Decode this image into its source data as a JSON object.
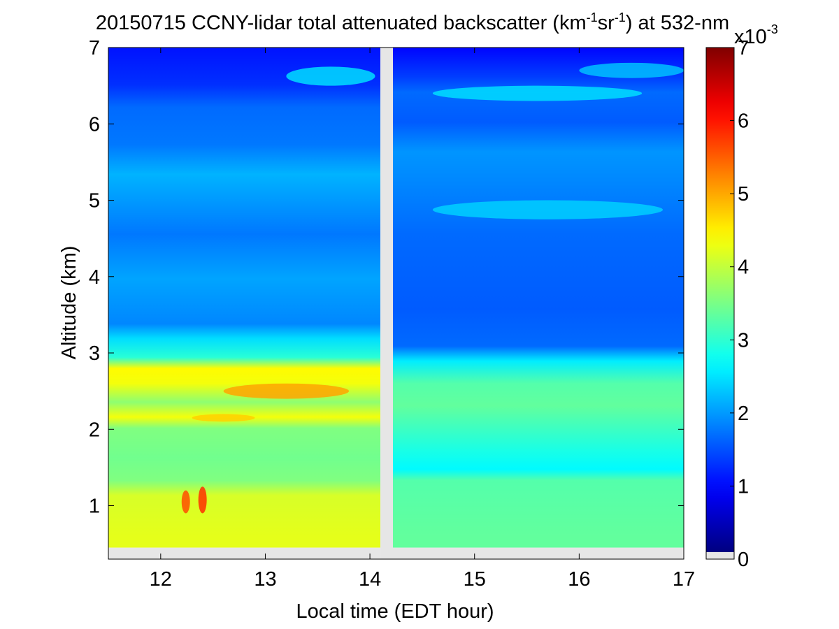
{
  "chart_data": {
    "type": "heatmap",
    "title_parts": {
      "prefix": "20150715 CCNY-lidar total attenuated backscatter (km",
      "exp1": "-1",
      "middle": "sr",
      "exp2": "-1",
      "suffix": ") at 532-nm"
    },
    "xlabel": "Local time (EDT hour)",
    "ylabel": "Altitude (km)",
    "xlim": [
      11.5,
      17.0
    ],
    "ylim": [
      0.3,
      7.0
    ],
    "xticks": [
      12,
      13,
      14,
      15,
      16,
      17
    ],
    "yticks": [
      1,
      2,
      3,
      4,
      5,
      6,
      7
    ],
    "data_gap": {
      "x_start": 14.1,
      "x_end": 14.22
    },
    "colorbar": {
      "range": [
        0,
        7
      ],
      "ticks": [
        0,
        1,
        2,
        3,
        4,
        5,
        6,
        7
      ],
      "exponent_base": "x10",
      "exponent": "-3",
      "colormap": "jet",
      "nodata_color": "#e6e6e6"
    },
    "before_gap": {
      "x_range": [
        11.5,
        14.1
      ],
      "profile": [
        {
          "altitude": 0.45,
          "value": 4.2
        },
        {
          "altitude": 1.0,
          "value": 4.1
        },
        {
          "altitude": 1.2,
          "value": 3.5
        },
        {
          "altitude": 1.5,
          "value": 3.4
        },
        {
          "altitude": 1.9,
          "value": 3.5
        },
        {
          "altitude": 2.05,
          "value": 4.3
        },
        {
          "altitude": 2.25,
          "value": 3.6
        },
        {
          "altitude": 2.5,
          "value": 4.3
        },
        {
          "altitude": 2.7,
          "value": 4.4
        },
        {
          "altitude": 2.85,
          "value": 2.9
        },
        {
          "altitude": 3.1,
          "value": 2.4
        },
        {
          "altitude": 3.3,
          "value": 1.8
        },
        {
          "altitude": 3.9,
          "value": 2.0
        },
        {
          "altitude": 4.5,
          "value": 1.7
        },
        {
          "altitude": 5.3,
          "value": 2.1
        },
        {
          "altitude": 5.7,
          "value": 1.7
        },
        {
          "altitude": 6.2,
          "value": 1.6
        },
        {
          "altitude": 6.5,
          "value": 1.2
        },
        {
          "altitude": 7.0,
          "value": 1.0
        }
      ]
    },
    "after_gap": {
      "x_range": [
        14.22,
        17.0
      ],
      "profile": [
        {
          "altitude": 0.45,
          "value": 3.3
        },
        {
          "altitude": 1.2,
          "value": 3.2
        },
        {
          "altitude": 1.35,
          "value": 2.6
        },
        {
          "altitude": 1.6,
          "value": 2.8
        },
        {
          "altitude": 2.2,
          "value": 3.3
        },
        {
          "altitude": 2.5,
          "value": 3.2
        },
        {
          "altitude": 2.8,
          "value": 2.5
        },
        {
          "altitude": 3.0,
          "value": 1.6
        },
        {
          "altitude": 3.5,
          "value": 1.5
        },
        {
          "altitude": 4.5,
          "value": 1.6
        },
        {
          "altitude": 5.2,
          "value": 1.8
        },
        {
          "altitude": 5.6,
          "value": 1.9
        },
        {
          "altitude": 6.0,
          "value": 1.5
        },
        {
          "altitude": 6.4,
          "value": 1.6
        },
        {
          "altitude": 6.6,
          "value": 1.3
        },
        {
          "altitude": 7.0,
          "value": 0.9
        }
      ]
    },
    "features": [
      {
        "x_start": 12.2,
        "x_end": 12.28,
        "alt_start": 0.9,
        "alt_end": 1.2,
        "value": 5.6
      },
      {
        "x_start": 12.36,
        "x_end": 12.44,
        "alt_start": 0.9,
        "alt_end": 1.25,
        "value": 5.8
      },
      {
        "x_start": 12.6,
        "x_end": 13.8,
        "alt_start": 2.4,
        "alt_end": 2.6,
        "value": 5.0
      },
      {
        "x_start": 12.3,
        "x_end": 12.9,
        "alt_start": 2.1,
        "alt_end": 2.2,
        "value": 4.7
      },
      {
        "x_start": 13.2,
        "x_end": 14.05,
        "alt_start": 6.5,
        "alt_end": 6.75,
        "value": 2.4
      },
      {
        "x_start": 14.6,
        "x_end": 16.6,
        "alt_start": 6.3,
        "alt_end": 6.5,
        "value": 2.4
      },
      {
        "x_start": 16.0,
        "x_end": 17.0,
        "alt_start": 6.6,
        "alt_end": 6.8,
        "value": 2.2
      },
      {
        "x_start": 14.6,
        "x_end": 16.8,
        "alt_start": 4.75,
        "alt_end": 5.0,
        "value": 2.3
      }
    ]
  }
}
